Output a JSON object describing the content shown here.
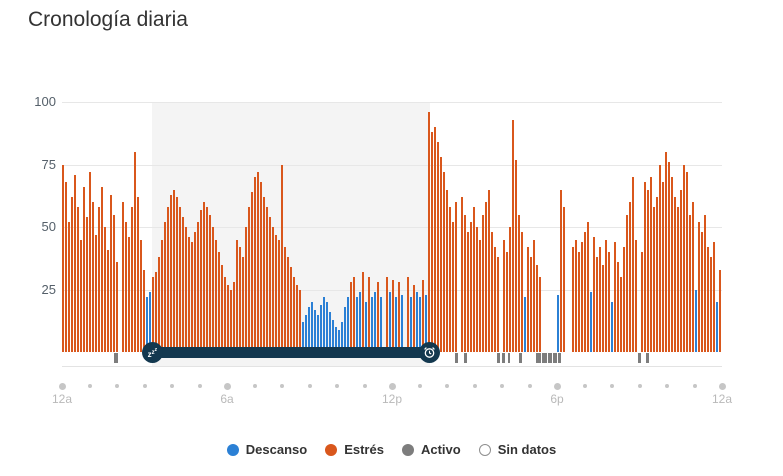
{
  "title": "Cronología diaria",
  "icons": {
    "sleep_start": "zzz-sleep-icon",
    "sleep_end": "alarm-clock-icon"
  },
  "colors": {
    "stress": "#d9571c",
    "rest": "#2b80d5",
    "active": "#7d7d7d",
    "no_data": "#ffffff",
    "sleep_band": "#13384f",
    "sleep_shade": "#f4f4f4",
    "gridline": "#e7e7e7",
    "axis_dot": "#c6c6c6",
    "x_label": "#b9b9b9",
    "y_label": "#55606a",
    "title": "#333333"
  },
  "chart_data": {
    "type": "bar",
    "title": "Cronología diaria",
    "ylabel": "",
    "xlabel": "",
    "ylim": [
      0,
      100
    ],
    "yticks": [
      25,
      50,
      75,
      100
    ],
    "xticks": [
      {
        "hour": 0,
        "label": "12a"
      },
      {
        "hour": 6,
        "label": "6a"
      },
      {
        "hour": 12,
        "label": "12p"
      },
      {
        "hour": 18,
        "label": "6p"
      },
      {
        "hour": 24,
        "label": "12a"
      }
    ],
    "x_span_hours": 24,
    "grid": true,
    "legend_position": "bottom-center",
    "legend": [
      {
        "label": "Descanso",
        "color": "#2b80d5",
        "outline": false
      },
      {
        "label": "Estrés",
        "color": "#d9571c",
        "outline": false
      },
      {
        "label": "Activo",
        "color": "#7d7d7d",
        "outline": false
      },
      {
        "label": "Sin datos",
        "color": "#ffffff",
        "outline": true
      }
    ],
    "sleep_band": {
      "start_hour": 3.27,
      "end_hour": 13.38
    },
    "active_periods_hours": [
      [
        1.9,
        2.02
      ],
      [
        14.28,
        14.4
      ],
      [
        14.62,
        14.73
      ],
      [
        15.8,
        15.92
      ],
      [
        16.0,
        16.12
      ],
      [
        16.2,
        16.3
      ],
      [
        16.62,
        16.73
      ],
      [
        17.25,
        17.42
      ],
      [
        17.47,
        17.63
      ],
      [
        17.68,
        17.82
      ],
      [
        17.86,
        17.99
      ],
      [
        18.03,
        18.13
      ],
      [
        20.93,
        21.06
      ],
      [
        21.22,
        21.35
      ]
    ],
    "bar_types": {
      "0": "stress",
      "1": "rest",
      "2": "no-data"
    },
    "bars": [
      [
        75,
        0
      ],
      [
        68,
        0
      ],
      [
        52,
        0
      ],
      [
        62,
        0
      ],
      [
        71,
        0
      ],
      [
        58,
        0
      ],
      [
        45,
        0
      ],
      [
        66,
        0
      ],
      [
        54,
        0
      ],
      [
        72,
        0
      ],
      [
        60,
        0
      ],
      [
        47,
        0
      ],
      [
        58,
        0
      ],
      [
        66,
        0
      ],
      [
        50,
        0
      ],
      [
        41,
        0
      ],
      [
        63,
        0
      ],
      [
        55,
        0
      ],
      [
        36,
        0
      ],
      [
        0,
        2
      ],
      [
        60,
        0
      ],
      [
        52,
        0
      ],
      [
        46,
        0
      ],
      [
        58,
        0
      ],
      [
        80,
        0
      ],
      [
        62,
        0
      ],
      [
        45,
        0
      ],
      [
        33,
        0
      ],
      [
        22,
        1
      ],
      [
        24,
        1
      ],
      [
        30,
        0
      ],
      [
        32,
        0
      ],
      [
        38,
        0
      ],
      [
        45,
        0
      ],
      [
        52,
        0
      ],
      [
        58,
        0
      ],
      [
        63,
        0
      ],
      [
        65,
        0
      ],
      [
        62,
        0
      ],
      [
        58,
        0
      ],
      [
        54,
        0
      ],
      [
        50,
        0
      ],
      [
        46,
        0
      ],
      [
        44,
        0
      ],
      [
        48,
        0
      ],
      [
        52,
        0
      ],
      [
        57,
        0
      ],
      [
        60,
        0
      ],
      [
        58,
        0
      ],
      [
        55,
        0
      ],
      [
        50,
        0
      ],
      [
        45,
        0
      ],
      [
        40,
        0
      ],
      [
        35,
        0
      ],
      [
        30,
        0
      ],
      [
        27,
        0
      ],
      [
        25,
        0
      ],
      [
        28,
        0
      ],
      [
        45,
        0
      ],
      [
        42,
        0
      ],
      [
        38,
        0
      ],
      [
        50,
        0
      ],
      [
        58,
        0
      ],
      [
        64,
        0
      ],
      [
        70,
        0
      ],
      [
        72,
        0
      ],
      [
        68,
        0
      ],
      [
        62,
        0
      ],
      [
        58,
        0
      ],
      [
        54,
        0
      ],
      [
        50,
        0
      ],
      [
        47,
        0
      ],
      [
        45,
        0
      ],
      [
        75,
        0
      ],
      [
        42,
        0
      ],
      [
        38,
        0
      ],
      [
        34,
        0
      ],
      [
        30,
        0
      ],
      [
        27,
        0
      ],
      [
        25,
        0
      ],
      [
        12,
        1
      ],
      [
        15,
        1
      ],
      [
        18,
        1
      ],
      [
        20,
        1
      ],
      [
        17,
        1
      ],
      [
        15,
        1
      ],
      [
        19,
        1
      ],
      [
        22,
        1
      ],
      [
        20,
        1
      ],
      [
        16,
        1
      ],
      [
        13,
        1
      ],
      [
        10,
        1
      ],
      [
        9,
        1
      ],
      [
        12,
        1
      ],
      [
        18,
        1
      ],
      [
        22,
        1
      ],
      [
        28,
        0
      ],
      [
        30,
        0
      ],
      [
        22,
        1
      ],
      [
        24,
        1
      ],
      [
        32,
        0
      ],
      [
        20,
        1
      ],
      [
        30,
        0
      ],
      [
        22,
        1
      ],
      [
        24,
        1
      ],
      [
        28,
        0
      ],
      [
        22,
        1
      ],
      [
        0,
        2
      ],
      [
        30,
        0
      ],
      [
        24,
        1
      ],
      [
        29,
        0
      ],
      [
        22,
        1
      ],
      [
        28,
        0
      ],
      [
        23,
        1
      ],
      [
        0,
        2
      ],
      [
        30,
        0
      ],
      [
        22,
        1
      ],
      [
        27,
        0
      ],
      [
        24,
        1
      ],
      [
        22,
        1
      ],
      [
        29,
        0
      ],
      [
        23,
        1
      ],
      [
        96,
        0
      ],
      [
        88,
        0
      ],
      [
        90,
        0
      ],
      [
        84,
        0
      ],
      [
        78,
        0
      ],
      [
        72,
        0
      ],
      [
        65,
        0
      ],
      [
        58,
        0
      ],
      [
        52,
        0
      ],
      [
        60,
        0
      ],
      [
        0,
        2
      ],
      [
        62,
        0
      ],
      [
        55,
        0
      ],
      [
        48,
        0
      ],
      [
        52,
        0
      ],
      [
        58,
        0
      ],
      [
        50,
        0
      ],
      [
        45,
        0
      ],
      [
        55,
        0
      ],
      [
        60,
        0
      ],
      [
        65,
        0
      ],
      [
        48,
        0
      ],
      [
        42,
        0
      ],
      [
        38,
        0
      ],
      [
        0,
        2
      ],
      [
        45,
        0
      ],
      [
        40,
        0
      ],
      [
        50,
        0
      ],
      [
        93,
        0
      ],
      [
        77,
        0
      ],
      [
        55,
        0
      ],
      [
        48,
        0
      ],
      [
        22,
        1
      ],
      [
        42,
        0
      ],
      [
        38,
        0
      ],
      [
        45,
        0
      ],
      [
        35,
        0
      ],
      [
        30,
        0
      ],
      [
        0,
        2
      ],
      [
        0,
        2
      ],
      [
        0,
        2
      ],
      [
        0,
        2
      ],
      [
        0,
        2
      ],
      [
        23,
        1
      ],
      [
        65,
        0
      ],
      [
        58,
        0
      ],
      [
        0,
        2
      ],
      [
        0,
        2
      ],
      [
        42,
        0
      ],
      [
        45,
        0
      ],
      [
        40,
        0
      ],
      [
        44,
        0
      ],
      [
        48,
        0
      ],
      [
        52,
        0
      ],
      [
        24,
        1
      ],
      [
        46,
        0
      ],
      [
        38,
        0
      ],
      [
        42,
        0
      ],
      [
        35,
        0
      ],
      [
        45,
        0
      ],
      [
        40,
        0
      ],
      [
        20,
        1
      ],
      [
        44,
        0
      ],
      [
        36,
        0
      ],
      [
        30,
        0
      ],
      [
        42,
        0
      ],
      [
        55,
        0
      ],
      [
        60,
        0
      ],
      [
        70,
        0
      ],
      [
        45,
        0
      ],
      [
        0,
        2
      ],
      [
        40,
        0
      ],
      [
        68,
        0
      ],
      [
        65,
        0
      ],
      [
        70,
        0
      ],
      [
        58,
        0
      ],
      [
        62,
        0
      ],
      [
        75,
        0
      ],
      [
        68,
        0
      ],
      [
        80,
        0
      ],
      [
        76,
        0
      ],
      [
        70,
        0
      ],
      [
        62,
        0
      ],
      [
        58,
        0
      ],
      [
        65,
        0
      ],
      [
        75,
        0
      ],
      [
        72,
        0
      ],
      [
        55,
        0
      ],
      [
        60,
        0
      ],
      [
        25,
        1
      ],
      [
        52,
        0
      ],
      [
        48,
        0
      ],
      [
        55,
        0
      ],
      [
        42,
        0
      ],
      [
        38,
        0
      ],
      [
        44,
        0
      ],
      [
        20,
        1
      ],
      [
        33,
        0
      ]
    ]
  }
}
